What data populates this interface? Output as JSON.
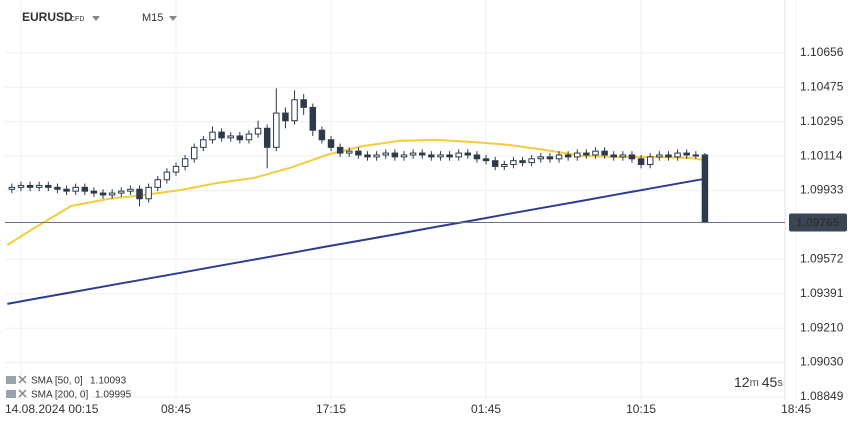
{
  "chart_data": {
    "type": "candlestick",
    "title": "EURUSD",
    "subtitle": "CFD",
    "timeframe": "M15",
    "xlim": [
      -0.625,
      42.14
    ],
    "xticks": [
      {
        "value": 0.25,
        "label": "14.08.2024  00:15"
      },
      {
        "value": 8.75,
        "label": "08:45"
      },
      {
        "value": 17.25,
        "label": "17:15"
      },
      {
        "value": 25.75,
        "label": "01:45"
      },
      {
        "value": 34.25,
        "label": "10:15"
      },
      {
        "value": 42.75,
        "label": "18:45"
      }
    ],
    "ylim": [
      1.08833,
      1.10934
    ],
    "yticks": [
      1.10656,
      1.10475,
      1.10295,
      1.10114,
      1.09933,
      1.09572,
      1.09391,
      {
        "value": 1.0921,
        "label": "1.09210"
      },
      {
        "value": 1.0903,
        "label": "1.09030"
      },
      1.08849
    ],
    "grid": true,
    "current_price": 1.09765,
    "countdown": {
      "minutes": "12",
      "minutes_unit": "m",
      "seconds": "45",
      "seconds_unit": "s"
    },
    "series": [
      {
        "type": "candlestick",
        "color": "#2c3a4b",
        "up_color": "#ffffff",
        "x": [
          -0.25,
          0.25,
          0.75,
          1.25,
          1.75,
          2.25,
          2.75,
          3.25,
          3.75,
          4.25,
          4.75,
          5.25,
          5.75,
          6.25,
          6.75,
          7.25,
          7.75,
          8.25,
          8.75,
          9.25,
          9.75,
          10.25,
          10.75,
          11.25,
          11.75,
          12.25,
          12.75,
          13.25,
          13.75,
          14.25,
          14.75,
          15.25,
          15.75,
          16.25,
          16.75,
          17.25,
          17.75,
          18.25,
          18.75,
          19.25,
          19.75,
          20.25,
          20.75,
          21.25,
          21.75,
          22.25,
          22.75,
          23.25,
          23.75,
          24.25,
          24.75,
          25.25,
          25.75,
          26.25,
          26.75,
          27.25,
          27.75,
          28.25,
          28.75,
          29.25,
          29.75,
          30.25,
          30.75,
          31.25,
          31.75,
          32.25,
          32.75,
          33.25,
          33.75,
          34.25,
          34.75,
          35.25,
          35.75,
          36.25,
          36.75,
          37.25,
          37.75
        ],
        "open": [
          1.0994,
          1.0995,
          1.0996,
          1.0995,
          1.0996,
          1.0995,
          1.0994,
          1.0993,
          1.0995,
          1.0993,
          1.0992,
          1.0991,
          1.0992,
          1.0993,
          1.0994,
          1.0989,
          1.0995,
          1.0999,
          1.1003,
          1.1006,
          1.101,
          1.1016,
          1.102,
          1.1024,
          1.1021,
          1.1022,
          1.102,
          1.1023,
          1.1026,
          1.1016,
          1.1034,
          1.103,
          1.1041,
          1.1037,
          1.1025,
          1.102,
          1.1016,
          1.1013,
          1.1014,
          1.1012,
          1.1011,
          1.1012,
          1.1013,
          1.1011,
          1.1012,
          1.1013,
          1.1012,
          1.1011,
          1.1012,
          1.1011,
          1.1013,
          1.1012,
          1.101,
          1.1009,
          1.1006,
          1.1007,
          1.1009,
          1.1008,
          1.101,
          1.1011,
          1.101,
          1.1012,
          1.1011,
          1.1013,
          1.1012,
          1.1014,
          1.1012,
          1.1011,
          1.1012,
          1.101,
          1.1007,
          1.1011,
          1.1012,
          1.1011,
          1.1013,
          1.1012,
          1.1012
        ],
        "high": [
          1.0997,
          1.0998,
          1.0998,
          1.0998,
          1.0998,
          1.0997,
          1.0996,
          1.0997,
          1.0997,
          1.0995,
          1.0994,
          1.0994,
          1.0995,
          1.0996,
          1.0996,
          1.0997,
          1.1001,
          1.1005,
          1.1008,
          1.1012,
          1.1018,
          1.1022,
          1.1027,
          1.1026,
          1.1024,
          1.1024,
          1.1025,
          1.103,
          1.1028,
          1.1047,
          1.1037,
          1.1046,
          1.1044,
          1.1039,
          1.1027,
          1.1022,
          1.1018,
          1.1016,
          1.1016,
          1.1014,
          1.1014,
          1.1015,
          1.1015,
          1.1014,
          1.1015,
          1.1015,
          1.1014,
          1.1014,
          1.1014,
          1.1015,
          1.1015,
          1.1014,
          1.1012,
          1.1011,
          1.1009,
          1.1011,
          1.1011,
          1.1012,
          1.1013,
          1.1013,
          1.1014,
          1.1014,
          1.1015,
          1.1015,
          1.1016,
          1.1016,
          1.1014,
          1.1014,
          1.1014,
          1.1012,
          1.1013,
          1.1014,
          1.1014,
          1.1015,
          1.1015,
          1.1014,
          1.1013
        ],
        "low": [
          1.0992,
          1.0993,
          1.0993,
          1.0993,
          1.0993,
          1.0992,
          1.0991,
          1.0991,
          1.0991,
          1.099,
          1.0989,
          1.0989,
          1.099,
          1.0991,
          1.0985,
          1.0987,
          1.0993,
          1.0997,
          1.1001,
          1.1004,
          1.1008,
          1.1014,
          1.1018,
          1.1019,
          1.1019,
          1.1018,
          1.1018,
          1.1021,
          1.1005,
          1.1014,
          1.1026,
          1.1028,
          1.1033,
          1.1022,
          1.1018,
          1.1014,
          1.1011,
          1.1011,
          1.101,
          1.1009,
          1.1009,
          1.101,
          1.1009,
          1.1009,
          1.101,
          1.101,
          1.1009,
          1.1009,
          1.1009,
          1.1009,
          1.101,
          1.1008,
          1.1007,
          1.1004,
          1.1004,
          1.1005,
          1.1006,
          1.1006,
          1.1008,
          1.1008,
          1.1008,
          1.1009,
          1.1009,
          1.101,
          1.101,
          1.101,
          1.1009,
          1.1009,
          1.1008,
          1.1005,
          1.1005,
          1.1009,
          1.1009,
          1.1009,
          1.101,
          1.101,
          1.09765
        ],
        "close": [
          1.0995,
          1.0996,
          1.0995,
          1.0996,
          1.0995,
          1.0994,
          1.0993,
          1.0995,
          1.0993,
          1.0992,
          1.0991,
          1.0992,
          1.0993,
          1.0994,
          1.0989,
          1.0995,
          1.0999,
          1.1003,
          1.1006,
          1.101,
          1.1016,
          1.102,
          1.1024,
          1.1021,
          1.1022,
          1.102,
          1.1023,
          1.1026,
          1.1016,
          1.1034,
          1.103,
          1.1041,
          1.1037,
          1.1025,
          1.102,
          1.1016,
          1.1013,
          1.1014,
          1.1012,
          1.1011,
          1.1012,
          1.1013,
          1.1011,
          1.1012,
          1.1013,
          1.1012,
          1.1011,
          1.1012,
          1.1011,
          1.1013,
          1.1012,
          1.101,
          1.1009,
          1.1006,
          1.1007,
          1.1009,
          1.1008,
          1.101,
          1.1011,
          1.101,
          1.1012,
          1.1011,
          1.1013,
          1.1012,
          1.1014,
          1.1012,
          1.1011,
          1.1012,
          1.101,
          1.1007,
          1.1011,
          1.1012,
          1.1011,
          1.1013,
          1.1012,
          1.1012,
          1.09765
        ]
      },
      {
        "type": "line",
        "name": "SMA [50, 0]",
        "color": "#f5cd3c",
        "x": [
          -0.5,
          1,
          3,
          5,
          7,
          9,
          11,
          13,
          15,
          17,
          19,
          21,
          23,
          25,
          27,
          29,
          31,
          33,
          35,
          37,
          37.75
        ],
        "values": [
          1.09647,
          1.09737,
          1.09852,
          1.09889,
          1.0991,
          1.09936,
          1.09973,
          1.09999,
          1.10052,
          1.1012,
          1.10167,
          1.10194,
          1.10199,
          1.10188,
          1.10173,
          1.10146,
          1.10115,
          1.1011,
          1.1011,
          1.10104,
          1.10093
        ]
      },
      {
        "type": "line",
        "name": "SMA [200, 0]",
        "color": "#2e3b96",
        "x": [
          -0.5,
          1,
          3,
          5,
          7,
          9,
          11,
          13,
          15,
          17,
          19,
          21,
          23,
          25,
          27,
          29,
          31,
          33,
          35,
          37,
          37.75
        ],
        "values": [
          1.09338,
          1.09364,
          1.09398,
          1.09433,
          1.09467,
          1.09501,
          1.09536,
          1.0957,
          1.09604,
          1.09639,
          1.09673,
          1.09707,
          1.09742,
          1.09776,
          1.09811,
          1.09845,
          1.09879,
          1.09914,
          1.09948,
          1.09982,
          1.09995
        ]
      }
    ]
  }
}
